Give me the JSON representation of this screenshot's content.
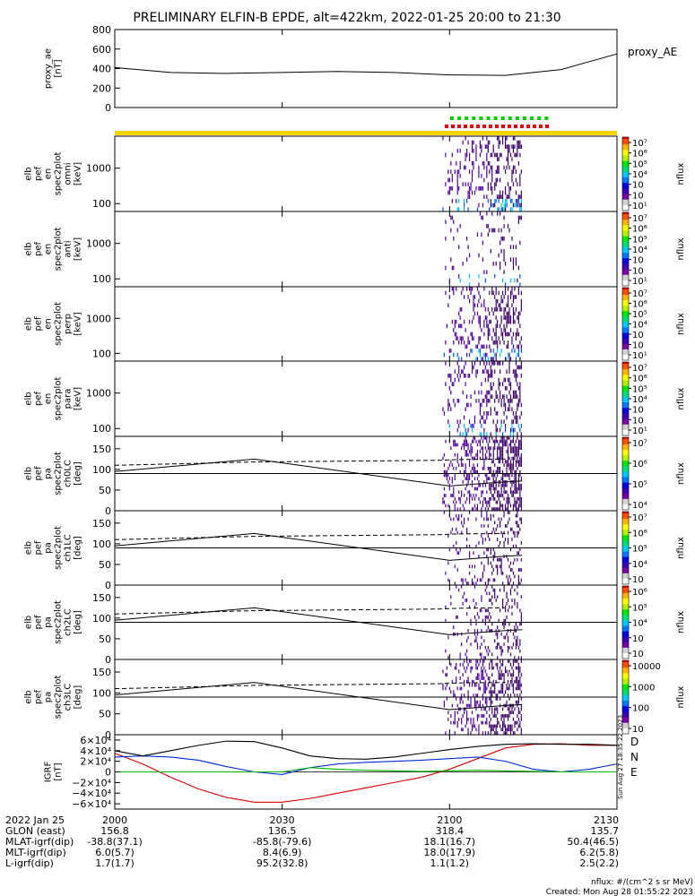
{
  "title": "PRELIMINARY ELFIN-B EPDE, alt=422km, 2022-01-25 20:00 to 21:30",
  "chart_data": [
    {
      "type": "line",
      "panel": "proxy_ae",
      "ylabel_lines": [
        "proxy_ae",
        "[nT]"
      ],
      "legend": "proxy_AE",
      "ylim": [
        0,
        800
      ],
      "yticks": [
        "800",
        "600",
        "400",
        "200",
        "0"
      ],
      "x_minutes": [
        0,
        10,
        20,
        30,
        40,
        50,
        60,
        70,
        80,
        90
      ],
      "values": [
        410,
        360,
        350,
        360,
        370,
        360,
        335,
        330,
        390,
        550
      ]
    },
    {
      "type": "bar",
      "panel": "status-bars",
      "green_bar_count": 14,
      "red_bar_count": 17,
      "track_color": "#ffd400"
    },
    {
      "type": "heatmap",
      "panel": "omni",
      "ylabel_lines": [
        "elb",
        "pef",
        "en",
        "spec2plot",
        "omni",
        "[keV]"
      ],
      "ylog": true,
      "yticks": [
        "1000",
        "100"
      ],
      "colorbar_ticks": [
        "10⁷",
        "10⁶",
        "10⁵",
        "10⁴",
        "10⁳",
        "10⁲",
        "10¹"
      ],
      "colorbar_label": "nflux",
      "activity_window_minutes": [
        60,
        72
      ]
    },
    {
      "type": "heatmap",
      "panel": "anti",
      "ylabel_lines": [
        "elb",
        "pef",
        "en",
        "spec2plot",
        "anti",
        "[keV]"
      ],
      "ylog": true,
      "yticks": [
        "1000",
        "100"
      ],
      "colorbar_ticks": [
        "10⁷",
        "10⁶",
        "10⁵",
        "10⁴",
        "10⁳",
        "10⁲",
        "10¹"
      ],
      "colorbar_label": "nflux",
      "activity_window_minutes": [
        60,
        72
      ]
    },
    {
      "type": "heatmap",
      "panel": "perp",
      "ylabel_lines": [
        "elb",
        "pef",
        "en",
        "spec2plot",
        "perp",
        "[keV]"
      ],
      "ylog": true,
      "yticks": [
        "1000",
        "100"
      ],
      "colorbar_ticks": [
        "10⁷",
        "10⁶",
        "10⁵",
        "10⁴",
        "10⁳",
        "10⁲",
        "10¹"
      ],
      "colorbar_label": "nflux",
      "activity_window_minutes": [
        60,
        72
      ]
    },
    {
      "type": "heatmap",
      "panel": "para",
      "ylabel_lines": [
        "elb",
        "pef",
        "en",
        "spec2plot",
        "para",
        "[keV]"
      ],
      "ylog": true,
      "yticks": [
        "1000",
        "100"
      ],
      "colorbar_ticks": [
        "10⁷",
        "10⁶",
        "10⁵",
        "10⁴",
        "10⁳",
        "10⁲",
        "10¹"
      ],
      "colorbar_label": "nflux",
      "activity_window_minutes": [
        60,
        72
      ]
    },
    {
      "type": "heatmap",
      "panel": "ch0LC",
      "ylabel_lines": [
        "elb",
        "pef",
        "pa",
        "spec2plot",
        "ch0LC",
        "[deg]"
      ],
      "ylim": [
        0,
        180
      ],
      "yticks": [
        "150",
        "100",
        "50",
        "0"
      ],
      "colorbar_ticks": [
        "10⁷",
        "10⁶",
        "10⁵",
        "10⁴"
      ],
      "colorbar_label": "nflux",
      "reference_line_deg": 90,
      "solid_line_minutes": [
        0,
        25,
        60,
        70,
        73
      ],
      "solid_line_deg": [
        95,
        125,
        60,
        70,
        72
      ],
      "dashed_line_minutes": [
        0,
        25,
        58,
        62,
        70
      ],
      "dashed_line_deg": [
        110,
        118,
        122,
        124,
        125
      ]
    },
    {
      "type": "heatmap",
      "panel": "ch1LC",
      "ylabel_lines": [
        "elb",
        "pef",
        "pa",
        "spec2plot",
        "ch1LC",
        "[deg]"
      ],
      "ylim": [
        0,
        180
      ],
      "yticks": [
        "150",
        "100",
        "50",
        "0"
      ],
      "colorbar_ticks": [
        "10⁷",
        "10⁶",
        "10⁵",
        "10⁴",
        "10⁳"
      ],
      "colorbar_label": "nflux",
      "reference_line_deg": 90,
      "solid_line_minutes": [
        0,
        25,
        60,
        70,
        73
      ],
      "solid_line_deg": [
        95,
        125,
        60,
        70,
        72
      ],
      "dashed_line_minutes": [
        0,
        25,
        58,
        62,
        70
      ],
      "dashed_line_deg": [
        110,
        118,
        122,
        124,
        125
      ]
    },
    {
      "type": "heatmap",
      "panel": "ch2LC",
      "ylabel_lines": [
        "elb",
        "pef",
        "pa",
        "spec2plot",
        "ch2LC",
        "[deg]"
      ],
      "ylim": [
        0,
        180
      ],
      "yticks": [
        "150",
        "100",
        "50",
        "0"
      ],
      "colorbar_ticks": [
        "10⁶",
        "10⁵",
        "10⁴",
        "10⁳",
        "10⁲"
      ],
      "colorbar_label": "nflux",
      "reference_line_deg": 90,
      "solid_line_minutes": [
        0,
        25,
        60,
        70,
        73
      ],
      "solid_line_deg": [
        95,
        125,
        60,
        70,
        72
      ],
      "dashed_line_minutes": [
        0,
        25,
        58,
        62,
        70
      ],
      "dashed_line_deg": [
        110,
        118,
        122,
        124,
        125
      ]
    },
    {
      "type": "heatmap",
      "panel": "ch3LC",
      "ylabel_lines": [
        "elb",
        "pef",
        "pa",
        "spec2plot",
        "ch3LC",
        "[deg]"
      ],
      "ylim": [
        0,
        180
      ],
      "yticks": [
        "150",
        "100",
        "50",
        "0"
      ],
      "colorbar_ticks": [
        "10000",
        "1000",
        "100",
        "10"
      ],
      "colorbar_label": "nflux",
      "reference_line_deg": 90,
      "solid_line_minutes": [
        0,
        25,
        60,
        70,
        73
      ],
      "solid_line_deg": [
        95,
        125,
        60,
        70,
        72
      ],
      "dashed_line_minutes": [
        0,
        25,
        58,
        62,
        70
      ],
      "dashed_line_deg": [
        110,
        118,
        122,
        124,
        125
      ]
    },
    {
      "type": "line",
      "panel": "IGRF",
      "ylabel_lines": [
        "IGRF",
        "[nT]"
      ],
      "ylim": [
        -70000,
        70000
      ],
      "yticks": [
        "6×10⁴",
        "4×10⁴",
        "2×10⁴",
        "0",
        "−2×10⁴",
        "−4×10⁴",
        "−6×10⁴"
      ],
      "x_minutes": [
        0,
        5,
        10,
        15,
        20,
        25,
        30,
        35,
        40,
        45,
        50,
        55,
        60,
        65,
        70,
        75,
        80,
        85,
        90
      ],
      "series": [
        {
          "name": "D",
          "color": "#d40000",
          "values": [
            35000,
            15000,
            -10000,
            -32000,
            -48000,
            -57000,
            -57000,
            -50000,
            -40000,
            -30000,
            -20000,
            -10000,
            5000,
            25000,
            45000,
            52000,
            53000,
            50000,
            50000
          ]
        },
        {
          "name": "N",
          "color": "#0028d8",
          "values": [
            28000,
            30000,
            28000,
            22000,
            10000,
            0,
            -5000,
            8000,
            15000,
            18000,
            20000,
            22000,
            25000,
            28000,
            20000,
            5000,
            0,
            5000,
            15000
          ]
        },
        {
          "name": "E",
          "color": "#00b400",
          "values": [
            0,
            0,
            0,
            0,
            0,
            0,
            0,
            8000,
            5000,
            3000,
            2000,
            1000,
            2000,
            3000,
            2000,
            1000,
            0,
            0,
            0
          ]
        },
        {
          "name": "",
          "color": "#000000",
          "values": [
            40000,
            30000,
            40000,
            50000,
            58000,
            57000,
            45000,
            30000,
            25000,
            24000,
            28000,
            35000,
            42000,
            48000,
            52000,
            53000,
            52000,
            52000,
            50000
          ]
        }
      ],
      "legend": [
        "D",
        "N",
        "E"
      ]
    }
  ],
  "x_axis": {
    "ticks": [
      "2000",
      "2030",
      "2100",
      "2130"
    ],
    "row_labels": [
      "2022 Jan 25",
      "GLON (east)",
      "MLAT-igrf(dip)",
      "MLT-igrf(dip)",
      "L-igrf(dip)"
    ],
    "columns": [
      [
        "2000",
        "156.8",
        "-38.8(37.1)",
        "6.0(5.7)",
        "1.7(1.7)"
      ],
      [
        "2030",
        "136.5",
        "-85.8(-79.6)",
        "8.4(6.9)",
        "95.2(32.8)"
      ],
      [
        "2100",
        "318.4",
        "18.1(16.7)",
        "18.0(17.9)",
        "1.1(1.2)"
      ],
      [
        "2130",
        "135.7",
        "50.4(46.5)",
        "6.2(5.8)",
        "2.5(2.2)"
      ]
    ]
  },
  "footer": {
    "units": "nflux: #/(cm^2 s sr MeV)",
    "created": "Created: Mon Aug 28 01:55:22 2023",
    "side_stamp": "Sun Aug 27 18:35:22 2023"
  }
}
